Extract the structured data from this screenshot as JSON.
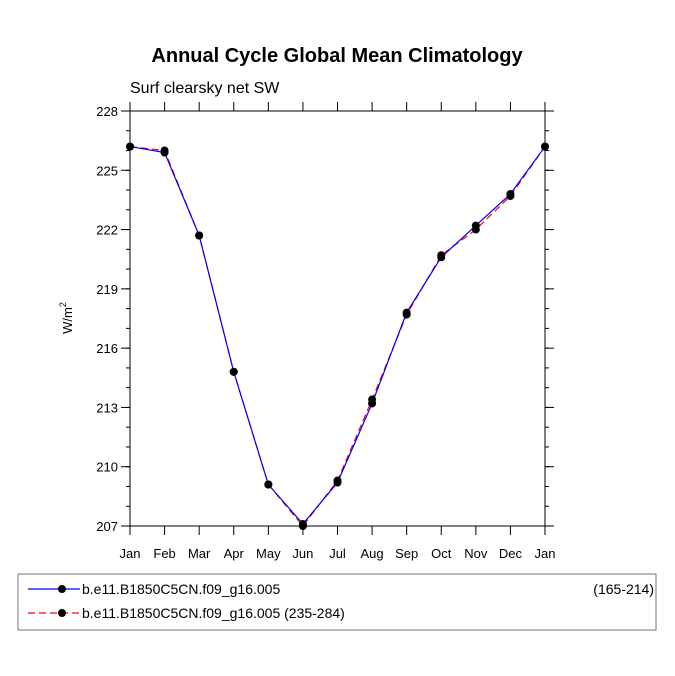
{
  "chart_data": {
    "type": "line",
    "title": "Annual Cycle Global Mean Climatology",
    "subtitle": "Surf clearsky net SW",
    "xlabel": "",
    "ylabel": "W/m",
    "ylabel_superscript": "2",
    "categories": [
      "Jan",
      "Feb",
      "Mar",
      "Apr",
      "May",
      "Jun",
      "Jul",
      "Aug",
      "Sep",
      "Oct",
      "Nov",
      "Dec",
      "Jan"
    ],
    "ylim": [
      207,
      228
    ],
    "yticks": [
      "207",
      "210",
      "213",
      "216",
      "219",
      "222",
      "225",
      "228"
    ],
    "series": [
      {
        "name": "b.e11.B1850C5CN.f09_g16.005",
        "range": "(165-214)",
        "color": "#0000ff",
        "dash": "solid",
        "values": [
          226.2,
          225.9,
          221.7,
          214.8,
          209.1,
          207.1,
          209.2,
          213.2,
          217.8,
          220.6,
          222.2,
          223.8,
          226.2
        ]
      },
      {
        "name": "b.e11.B1850C5CN.f09_g16.005 (235-284)",
        "range": "",
        "color": "#ff0000",
        "dash": "dashed",
        "values": [
          226.2,
          226.0,
          221.7,
          214.8,
          209.1,
          207.0,
          209.3,
          213.4,
          217.7,
          220.7,
          222.0,
          223.7,
          226.2
        ]
      }
    ],
    "legend_position": "bottom"
  }
}
